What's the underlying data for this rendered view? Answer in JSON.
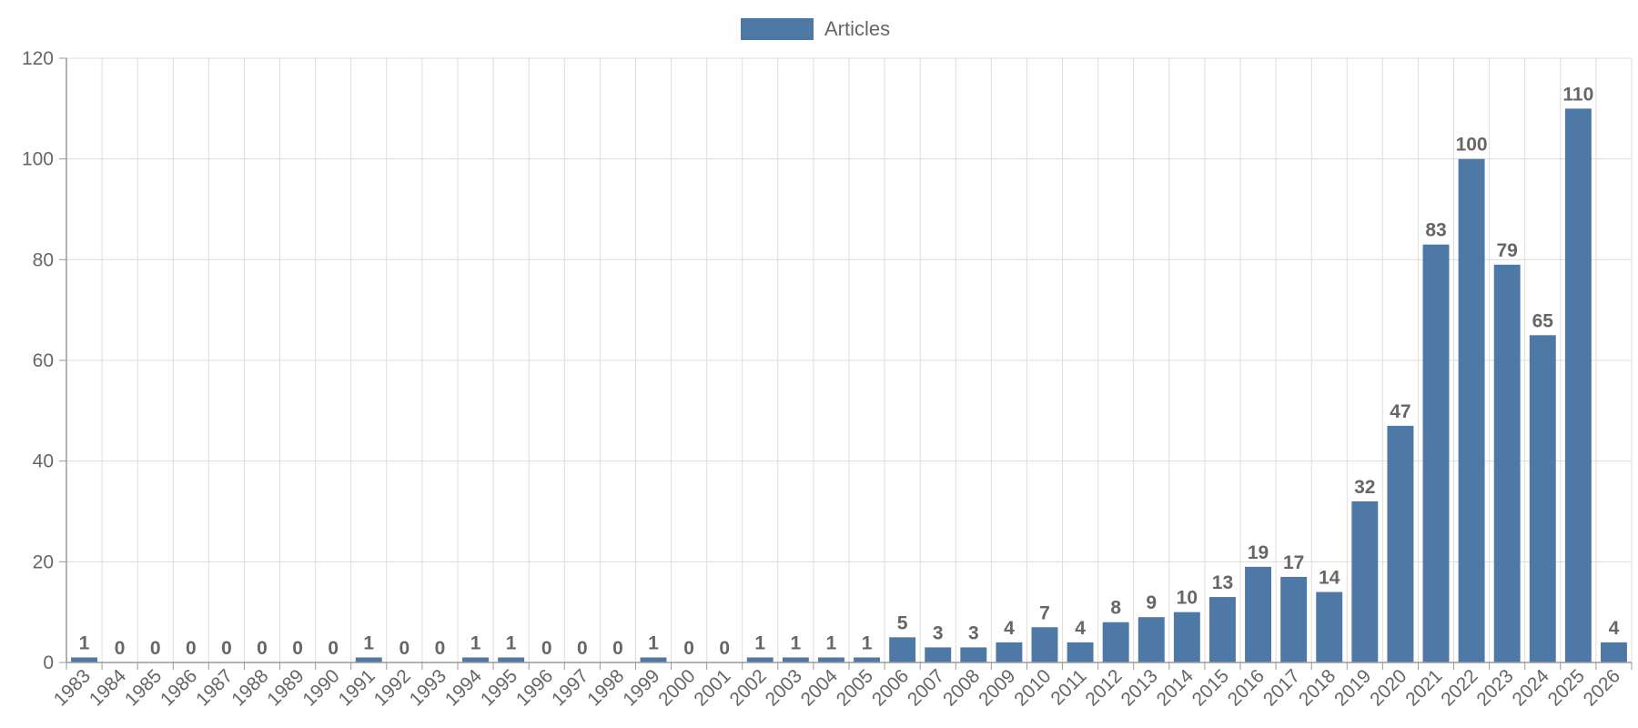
{
  "chart_data": {
    "type": "bar",
    "legend": {
      "position": "top-center",
      "label": "Articles"
    },
    "categories": [
      "1983",
      "1984",
      "1985",
      "1986",
      "1987",
      "1988",
      "1989",
      "1990",
      "1991",
      "1992",
      "1993",
      "1994",
      "1995",
      "1996",
      "1997",
      "1998",
      "1999",
      "2000",
      "2001",
      "2002",
      "2003",
      "2004",
      "2005",
      "2006",
      "2007",
      "2008",
      "2009",
      "2010",
      "2011",
      "2012",
      "2013",
      "2014",
      "2015",
      "2016",
      "2017",
      "2018",
      "2019",
      "2020",
      "2021",
      "2022",
      "2023",
      "2024",
      "2025",
      "2026"
    ],
    "series": [
      {
        "name": "Articles",
        "color": "#4e79a7",
        "values": [
          1,
          0,
          0,
          0,
          0,
          0,
          0,
          0,
          1,
          0,
          0,
          1,
          1,
          0,
          0,
          0,
          1,
          0,
          0,
          1,
          1,
          1,
          1,
          5,
          3,
          3,
          4,
          7,
          4,
          8,
          9,
          10,
          13,
          19,
          17,
          14,
          32,
          47,
          83,
          100,
          79,
          65,
          110,
          4
        ]
      }
    ],
    "ylim": [
      0,
      120
    ],
    "yticks": [
      "0",
      "20",
      "40",
      "60",
      "80",
      "100",
      "120"
    ],
    "grid": true,
    "data_labels": true,
    "gridline_color": "#dddddd",
    "axis_color": "#999999",
    "text_color": "#666666"
  }
}
